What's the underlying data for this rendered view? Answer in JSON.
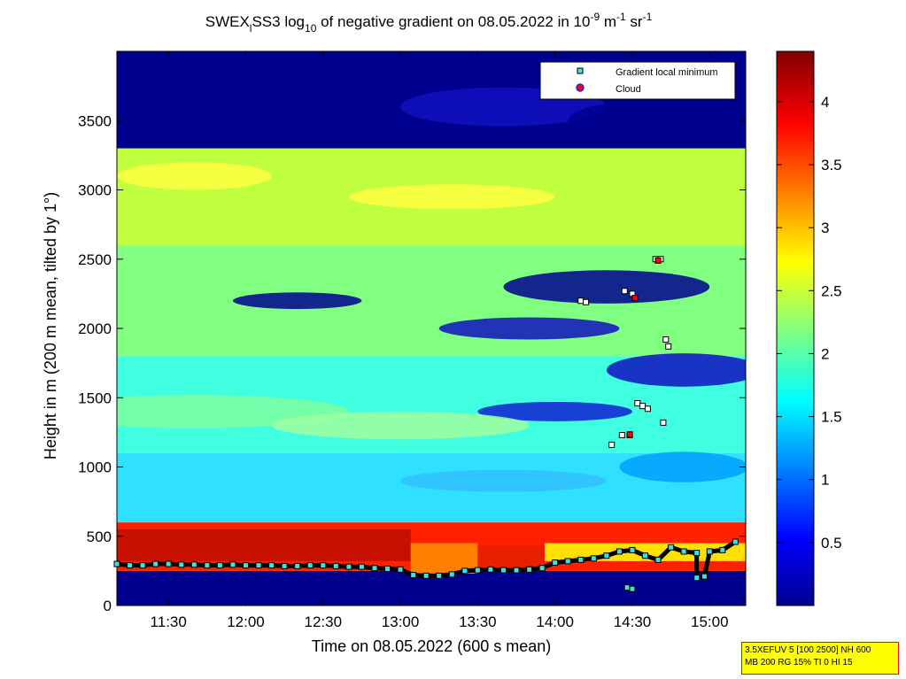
{
  "title": {
    "prefix": "SWEX",
    "prefix_sub": "l",
    "mid": "SS3 log",
    "mid_sub": "10",
    "rest": " of negative gradient on 08.05.2022 in 10",
    "exp1": "-9",
    "unit_m": " m",
    "exp2": "-1",
    "unit_sr": " sr",
    "exp3": "-1"
  },
  "chart_data": {
    "type": "heatmap",
    "xlabel": "Time on 08.05.2022 (600 s mean)",
    "ylabel": "Height in m (200 m mean, tilted by 1°)",
    "x_ticks": [
      "11:30",
      "12:00",
      "12:30",
      "13:00",
      "13:30",
      "14:00",
      "14:30",
      "15:00"
    ],
    "x_tick_minutes": [
      690,
      720,
      750,
      780,
      810,
      840,
      870,
      900
    ],
    "xlim_minutes": [
      670,
      914
    ],
    "y_ticks": [
      0,
      500,
      1000,
      1500,
      2000,
      2500,
      3000,
      3500
    ],
    "ylim": [
      0,
      4000
    ],
    "colorbar": {
      "ticks": [
        0.5,
        1,
        1.5,
        2,
        2.5,
        3,
        3.5,
        4
      ],
      "range": [
        0,
        4.4
      ],
      "colormap": [
        "#00008f",
        "#0000ff",
        "#00ffff",
        "#ffff00",
        "#ff0000",
        "#800000"
      ]
    },
    "legend": {
      "placement": "top-right",
      "items": [
        {
          "label": "Gradient local minimum",
          "marker": "square",
          "color": "#40e0e0"
        },
        {
          "label": "Cloud",
          "marker": "circle",
          "color": "#ff0000"
        }
      ]
    },
    "series": [
      {
        "name": "Gradient local minimum",
        "points": [
          [
            670,
            300
          ],
          [
            675,
            290
          ],
          [
            680,
            290
          ],
          [
            685,
            300
          ],
          [
            690,
            300
          ],
          [
            695,
            295
          ],
          [
            700,
            295
          ],
          [
            705,
            290
          ],
          [
            710,
            290
          ],
          [
            715,
            295
          ],
          [
            720,
            290
          ],
          [
            725,
            290
          ],
          [
            730,
            290
          ],
          [
            735,
            285
          ],
          [
            740,
            285
          ],
          [
            745,
            290
          ],
          [
            750,
            290
          ],
          [
            755,
            285
          ],
          [
            760,
            280
          ],
          [
            765,
            280
          ],
          [
            770,
            270
          ],
          [
            775,
            265
          ],
          [
            780,
            260
          ],
          [
            785,
            220
          ],
          [
            790,
            215
          ],
          [
            795,
            215
          ],
          [
            800,
            225
          ],
          [
            805,
            250
          ],
          [
            810,
            255
          ],
          [
            815,
            260
          ],
          [
            820,
            255
          ],
          [
            825,
            255
          ],
          [
            830,
            260
          ],
          [
            835,
            270
          ],
          [
            840,
            310
          ],
          [
            845,
            320
          ],
          [
            850,
            330
          ],
          [
            855,
            340
          ],
          [
            860,
            360
          ],
          [
            865,
            390
          ],
          [
            870,
            400
          ],
          [
            875,
            360
          ],
          [
            880,
            330
          ],
          [
            885,
            420
          ],
          [
            890,
            390
          ],
          [
            895,
            380
          ],
          [
            900,
            390
          ],
          [
            905,
            400
          ],
          [
            910,
            460
          ],
          [
            850,
            2200
          ],
          [
            852,
            2190
          ],
          [
            867,
            2270
          ],
          [
            870,
            2250
          ],
          [
            879,
            2500
          ],
          [
            881,
            2500
          ],
          [
            883,
            1920
          ],
          [
            884,
            1870
          ],
          [
            872,
            1460
          ],
          [
            874,
            1440
          ],
          [
            876,
            1420
          ],
          [
            882,
            1320
          ],
          [
            862,
            1160
          ],
          [
            866,
            1230
          ],
          [
            869,
            1230
          ],
          [
            895,
            200
          ],
          [
            898,
            210
          ],
          [
            868,
            130
          ],
          [
            870,
            120
          ]
        ]
      },
      {
        "name": "Cloud",
        "points": [
          [
            871,
            2220
          ],
          [
            880,
            2490
          ],
          [
            869,
            1235
          ]
        ]
      }
    ]
  },
  "info_box": {
    "line1": "3.5XEFUV 5 [100 2500] NH 600",
    "line2": "MB 200 RG 15% TI 0 HI 15"
  }
}
